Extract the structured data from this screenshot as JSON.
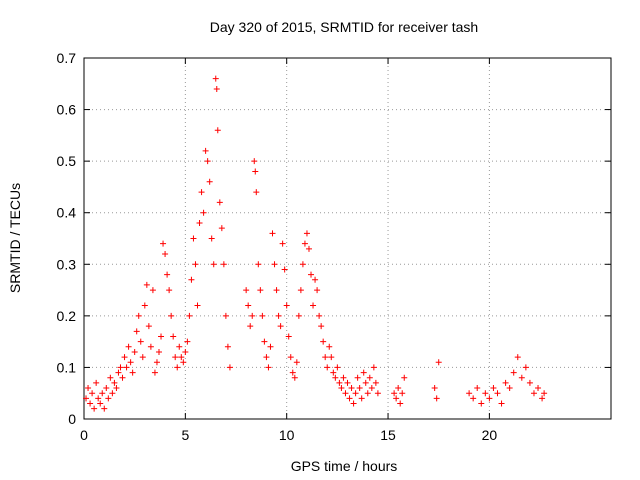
{
  "chart_data": {
    "type": "scatter",
    "title": "Day 320 of 2015, SRMTID for receiver tash",
    "xlabel": "GPS time / hours",
    "ylabel": "SRMTID / TECUs",
    "xlim": [
      0,
      26
    ],
    "ylim": [
      0,
      0.7
    ],
    "x_ticks": [
      0,
      5,
      10,
      15,
      20
    ],
    "x_tick_labels": [
      "0",
      "5",
      "10",
      "15",
      "20"
    ],
    "y_ticks": [
      0,
      0.1,
      0.2,
      0.3,
      0.4,
      0.5,
      0.6,
      0.7
    ],
    "y_tick_labels": [
      "0",
      "0.1",
      "0.2",
      "0.3",
      "0.4",
      "0.5",
      "0.6",
      "0.7"
    ],
    "grid": true,
    "marker": "plus",
    "color": "#ff0000",
    "series": [
      {
        "name": "SRMTID",
        "points": [
          [
            0.1,
            0.04
          ],
          [
            0.2,
            0.06
          ],
          [
            0.3,
            0.03
          ],
          [
            0.4,
            0.05
          ],
          [
            0.5,
            0.02
          ],
          [
            0.6,
            0.07
          ],
          [
            0.7,
            0.04
          ],
          [
            0.8,
            0.03
          ],
          [
            0.9,
            0.05
          ],
          [
            1.0,
            0.02
          ],
          [
            1.1,
            0.06
          ],
          [
            1.2,
            0.04
          ],
          [
            1.3,
            0.08
          ],
          [
            1.4,
            0.05
          ],
          [
            1.5,
            0.07
          ],
          [
            1.6,
            0.06
          ],
          [
            1.7,
            0.09
          ],
          [
            1.8,
            0.1
          ],
          [
            1.9,
            0.08
          ],
          [
            2.0,
            0.12
          ],
          [
            2.1,
            0.1
          ],
          [
            2.2,
            0.14
          ],
          [
            2.3,
            0.11
          ],
          [
            2.4,
            0.09
          ],
          [
            2.5,
            0.13
          ],
          [
            2.6,
            0.17
          ],
          [
            2.7,
            0.2
          ],
          [
            2.8,
            0.15
          ],
          [
            2.9,
            0.12
          ],
          [
            3.0,
            0.22
          ],
          [
            3.1,
            0.26
          ],
          [
            3.2,
            0.18
          ],
          [
            3.3,
            0.14
          ],
          [
            3.4,
            0.25
          ],
          [
            3.5,
            0.09
          ],
          [
            3.6,
            0.11
          ],
          [
            3.7,
            0.13
          ],
          [
            3.8,
            0.16
          ],
          [
            3.9,
            0.34
          ],
          [
            4.0,
            0.32
          ],
          [
            4.1,
            0.28
          ],
          [
            4.2,
            0.25
          ],
          [
            4.3,
            0.2
          ],
          [
            4.4,
            0.16
          ],
          [
            4.5,
            0.12
          ],
          [
            4.6,
            0.1
          ],
          [
            4.7,
            0.14
          ],
          [
            4.8,
            0.12
          ],
          [
            4.9,
            0.11
          ],
          [
            5.0,
            0.13
          ],
          [
            5.1,
            0.15
          ],
          [
            5.2,
            0.2
          ],
          [
            5.3,
            0.27
          ],
          [
            5.4,
            0.35
          ],
          [
            5.5,
            0.3
          ],
          [
            5.6,
            0.22
          ],
          [
            5.7,
            0.38
          ],
          [
            5.8,
            0.44
          ],
          [
            5.9,
            0.4
          ],
          [
            6.0,
            0.52
          ],
          [
            6.1,
            0.5
          ],
          [
            6.2,
            0.46
          ],
          [
            6.3,
            0.35
          ],
          [
            6.4,
            0.3
          ],
          [
            6.5,
            0.66
          ],
          [
            6.55,
            0.64
          ],
          [
            6.6,
            0.56
          ],
          [
            6.7,
            0.42
          ],
          [
            6.8,
            0.37
          ],
          [
            6.9,
            0.3
          ],
          [
            7.0,
            0.2
          ],
          [
            7.1,
            0.14
          ],
          [
            7.2,
            0.1
          ],
          [
            8.0,
            0.25
          ],
          [
            8.1,
            0.22
          ],
          [
            8.2,
            0.18
          ],
          [
            8.3,
            0.2
          ],
          [
            8.4,
            0.5
          ],
          [
            8.45,
            0.48
          ],
          [
            8.5,
            0.44
          ],
          [
            8.6,
            0.3
          ],
          [
            8.7,
            0.25
          ],
          [
            8.8,
            0.2
          ],
          [
            8.9,
            0.15
          ],
          [
            9.0,
            0.12
          ],
          [
            9.1,
            0.1
          ],
          [
            9.2,
            0.14
          ],
          [
            9.3,
            0.36
          ],
          [
            9.4,
            0.3
          ],
          [
            9.5,
            0.25
          ],
          [
            9.6,
            0.2
          ],
          [
            9.7,
            0.18
          ],
          [
            9.8,
            0.34
          ],
          [
            9.9,
            0.29
          ],
          [
            10.0,
            0.22
          ],
          [
            10.1,
            0.16
          ],
          [
            10.2,
            0.12
          ],
          [
            10.3,
            0.09
          ],
          [
            10.4,
            0.08
          ],
          [
            10.5,
            0.11
          ],
          [
            10.6,
            0.2
          ],
          [
            10.7,
            0.25
          ],
          [
            10.8,
            0.3
          ],
          [
            10.9,
            0.34
          ],
          [
            11.0,
            0.36
          ],
          [
            11.1,
            0.33
          ],
          [
            11.2,
            0.28
          ],
          [
            11.3,
            0.22
          ],
          [
            11.4,
            0.27
          ],
          [
            11.5,
            0.25
          ],
          [
            11.6,
            0.2
          ],
          [
            11.7,
            0.18
          ],
          [
            11.8,
            0.15
          ],
          [
            11.9,
            0.12
          ],
          [
            12.0,
            0.1
          ],
          [
            12.1,
            0.14
          ],
          [
            12.2,
            0.12
          ],
          [
            12.3,
            0.09
          ],
          [
            12.4,
            0.08
          ],
          [
            12.5,
            0.1
          ],
          [
            12.6,
            0.07
          ],
          [
            12.7,
            0.06
          ],
          [
            12.8,
            0.08
          ],
          [
            12.9,
            0.05
          ],
          [
            13.0,
            0.07
          ],
          [
            13.1,
            0.04
          ],
          [
            13.2,
            0.06
          ],
          [
            13.3,
            0.03
          ],
          [
            13.4,
            0.05
          ],
          [
            13.5,
            0.08
          ],
          [
            13.6,
            0.06
          ],
          [
            13.7,
            0.04
          ],
          [
            13.8,
            0.09
          ],
          [
            13.9,
            0.07
          ],
          [
            14.0,
            0.05
          ],
          [
            14.1,
            0.08
          ],
          [
            14.2,
            0.06
          ],
          [
            14.3,
            0.1
          ],
          [
            14.4,
            0.07
          ],
          [
            14.5,
            0.05
          ],
          [
            15.3,
            0.05
          ],
          [
            15.4,
            0.04
          ],
          [
            15.5,
            0.06
          ],
          [
            15.6,
            0.03
          ],
          [
            15.7,
            0.05
          ],
          [
            15.8,
            0.08
          ],
          [
            17.3,
            0.06
          ],
          [
            17.4,
            0.04
          ],
          [
            17.5,
            0.11
          ],
          [
            19.0,
            0.05
          ],
          [
            19.2,
            0.04
          ],
          [
            19.4,
            0.06
          ],
          [
            19.6,
            0.03
          ],
          [
            19.8,
            0.05
          ],
          [
            20.0,
            0.04
          ],
          [
            20.2,
            0.06
          ],
          [
            20.4,
            0.05
          ],
          [
            20.6,
            0.03
          ],
          [
            20.8,
            0.07
          ],
          [
            21.0,
            0.06
          ],
          [
            21.2,
            0.09
          ],
          [
            21.4,
            0.12
          ],
          [
            21.6,
            0.08
          ],
          [
            21.8,
            0.1
          ],
          [
            22.0,
            0.07
          ],
          [
            22.2,
            0.05
          ],
          [
            22.4,
            0.06
          ],
          [
            22.6,
            0.04
          ],
          [
            22.7,
            0.05
          ]
        ]
      }
    ]
  }
}
